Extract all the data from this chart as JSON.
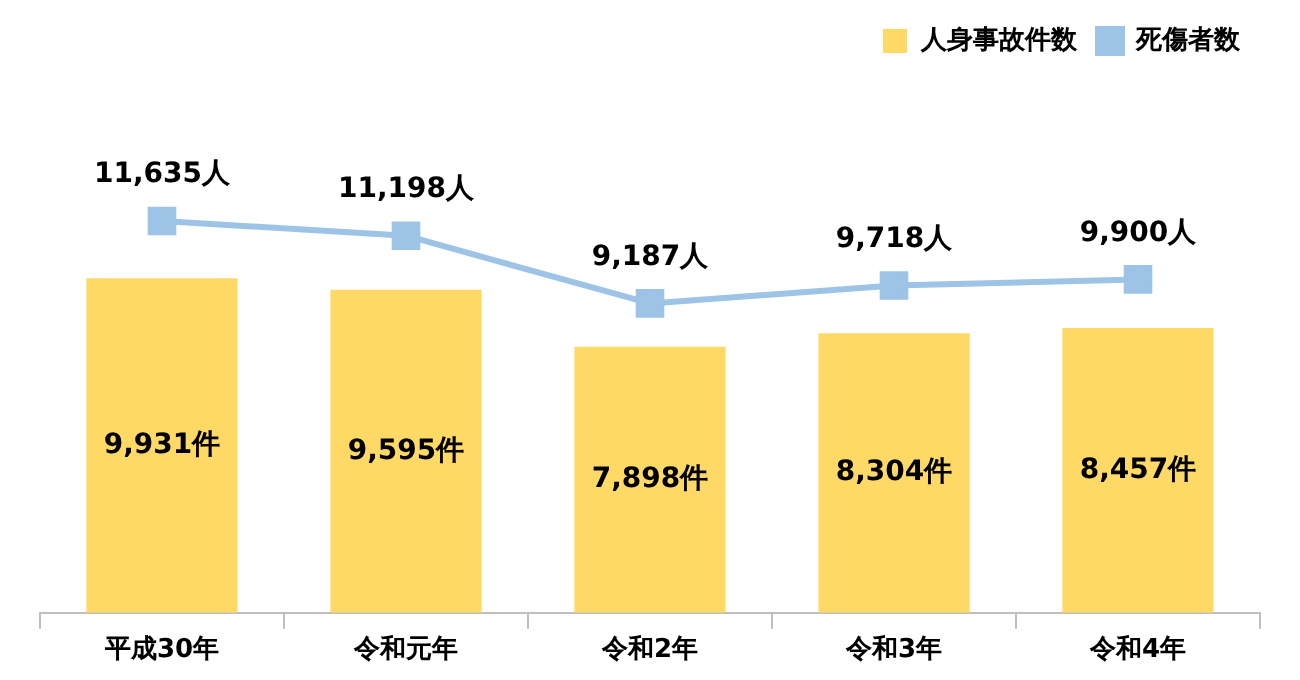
{
  "chart_data": {
    "type": "bar",
    "categories": [
      "平成30年",
      "令和元年",
      "令和2年",
      "令和3年",
      "令和4年"
    ],
    "series": [
      {
        "name": "人身事故件数",
        "color": "#ffd966",
        "values": [
          9931,
          9595,
          7898,
          8304,
          8457
        ],
        "value_labels": [
          "9,931件",
          "9,595件",
          "7,898件",
          "8,304件",
          "8,457件"
        ]
      },
      {
        "name": "死傷者数",
        "type": "line",
        "color": "#9dc3e6",
        "values": [
          11635,
          11198,
          9187,
          9718,
          9900
        ],
        "value_labels": [
          "11,635人",
          "11,198人",
          "9,187人",
          "9,718人",
          "9,900人"
        ]
      }
    ],
    "tick_labels": "x",
    "grid": false,
    "legend": "top right",
    "marker": "square"
  }
}
